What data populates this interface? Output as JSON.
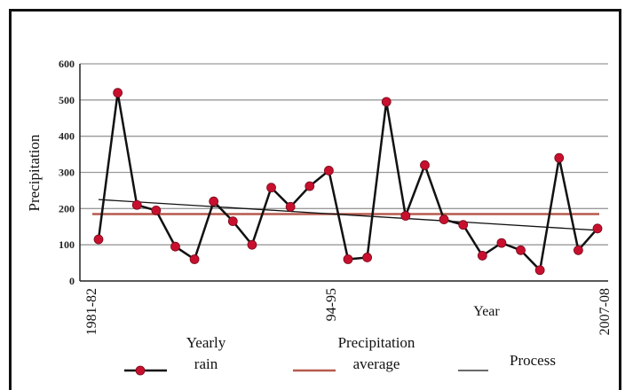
{
  "chart_data": {
    "type": "line",
    "xlabel": "Year",
    "ylabel": "Precipitation",
    "ylim": [
      0,
      600
    ],
    "yticks": [
      0,
      100,
      200,
      300,
      400,
      500,
      600
    ],
    "x_tick_labels": [
      "1981-82",
      "94-95",
      "2007-08"
    ],
    "grid": true,
    "legend_position": "bottom",
    "series": [
      {
        "name": "Yearly rain",
        "color": "#c8102e",
        "values": [
          115,
          520,
          210,
          195,
          95,
          60,
          220,
          165,
          100,
          258,
          205,
          262,
          305,
          60,
          65,
          495,
          180,
          320,
          170,
          155,
          70,
          105,
          85,
          30,
          340,
          85,
          145
        ]
      },
      {
        "name": "Precipitation average",
        "color": "#b55a4f",
        "values": [
          185,
          185
        ]
      },
      {
        "name": "Process",
        "color": "#111111",
        "values": [
          225,
          140
        ]
      }
    ],
    "legend_labels": [
      {
        "line1": "Yearly",
        "line2": "rain"
      },
      {
        "line1": "Precipitation",
        "line2": "average"
      },
      {
        "line1": "Process",
        "line2": ""
      }
    ]
  }
}
